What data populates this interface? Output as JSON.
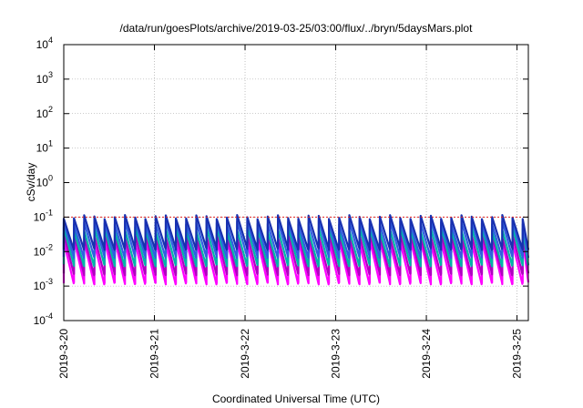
{
  "chart_data": {
    "type": "line",
    "title": "/data/run/goesPlots/archive/2019-03-25/03:00/flux/../bryn/5daysMars.plot",
    "xlabel": "Coordinated Universal Time (UTC)",
    "ylabel": "cSv/day",
    "yscale": "log",
    "ylim": [
      0.0001,
      10000
    ],
    "y_ticks": [
      {
        "value": 0.0001,
        "base": "10",
        "exp": "-4"
      },
      {
        "value": 0.001,
        "base": "10",
        "exp": "-3"
      },
      {
        "value": 0.01,
        "base": "10",
        "exp": "-2"
      },
      {
        "value": 0.1,
        "base": "10",
        "exp": "-1"
      },
      {
        "value": 1,
        "base": "10",
        "exp": "0"
      },
      {
        "value": 10,
        "base": "10",
        "exp": "1"
      },
      {
        "value": 100,
        "base": "10",
        "exp": "2"
      },
      {
        "value": 1000,
        "base": "10",
        "exp": "3"
      },
      {
        "value": 10000,
        "base": "10",
        "exp": "4"
      }
    ],
    "xlim": [
      "2019-03-20T00:00",
      "2019-03-25T03:00"
    ],
    "x_ticks": [
      "2019-3-20",
      "2019-3-21",
      "2019-3-22",
      "2019-3-23",
      "2019-3-24",
      "2019-3-25"
    ],
    "grid": true,
    "sawtooth_period_hours": 2.7,
    "series": [
      {
        "color": "#ff00ff",
        "peak": 0.02,
        "trough": 0.0012
      },
      {
        "color": "#b000c0",
        "peak": 0.03,
        "trough": 0.0022
      },
      {
        "color": "#00b4a8",
        "peak": 0.045,
        "trough": 0.004
      },
      {
        "color": "#3060e0",
        "peak": 0.07,
        "trough": 0.007
      },
      {
        "color": "#1830b0",
        "peak": 0.1,
        "trough": 0.012
      }
    ],
    "reference_line": {
      "value": 0.1,
      "color": "#e02020"
    }
  }
}
